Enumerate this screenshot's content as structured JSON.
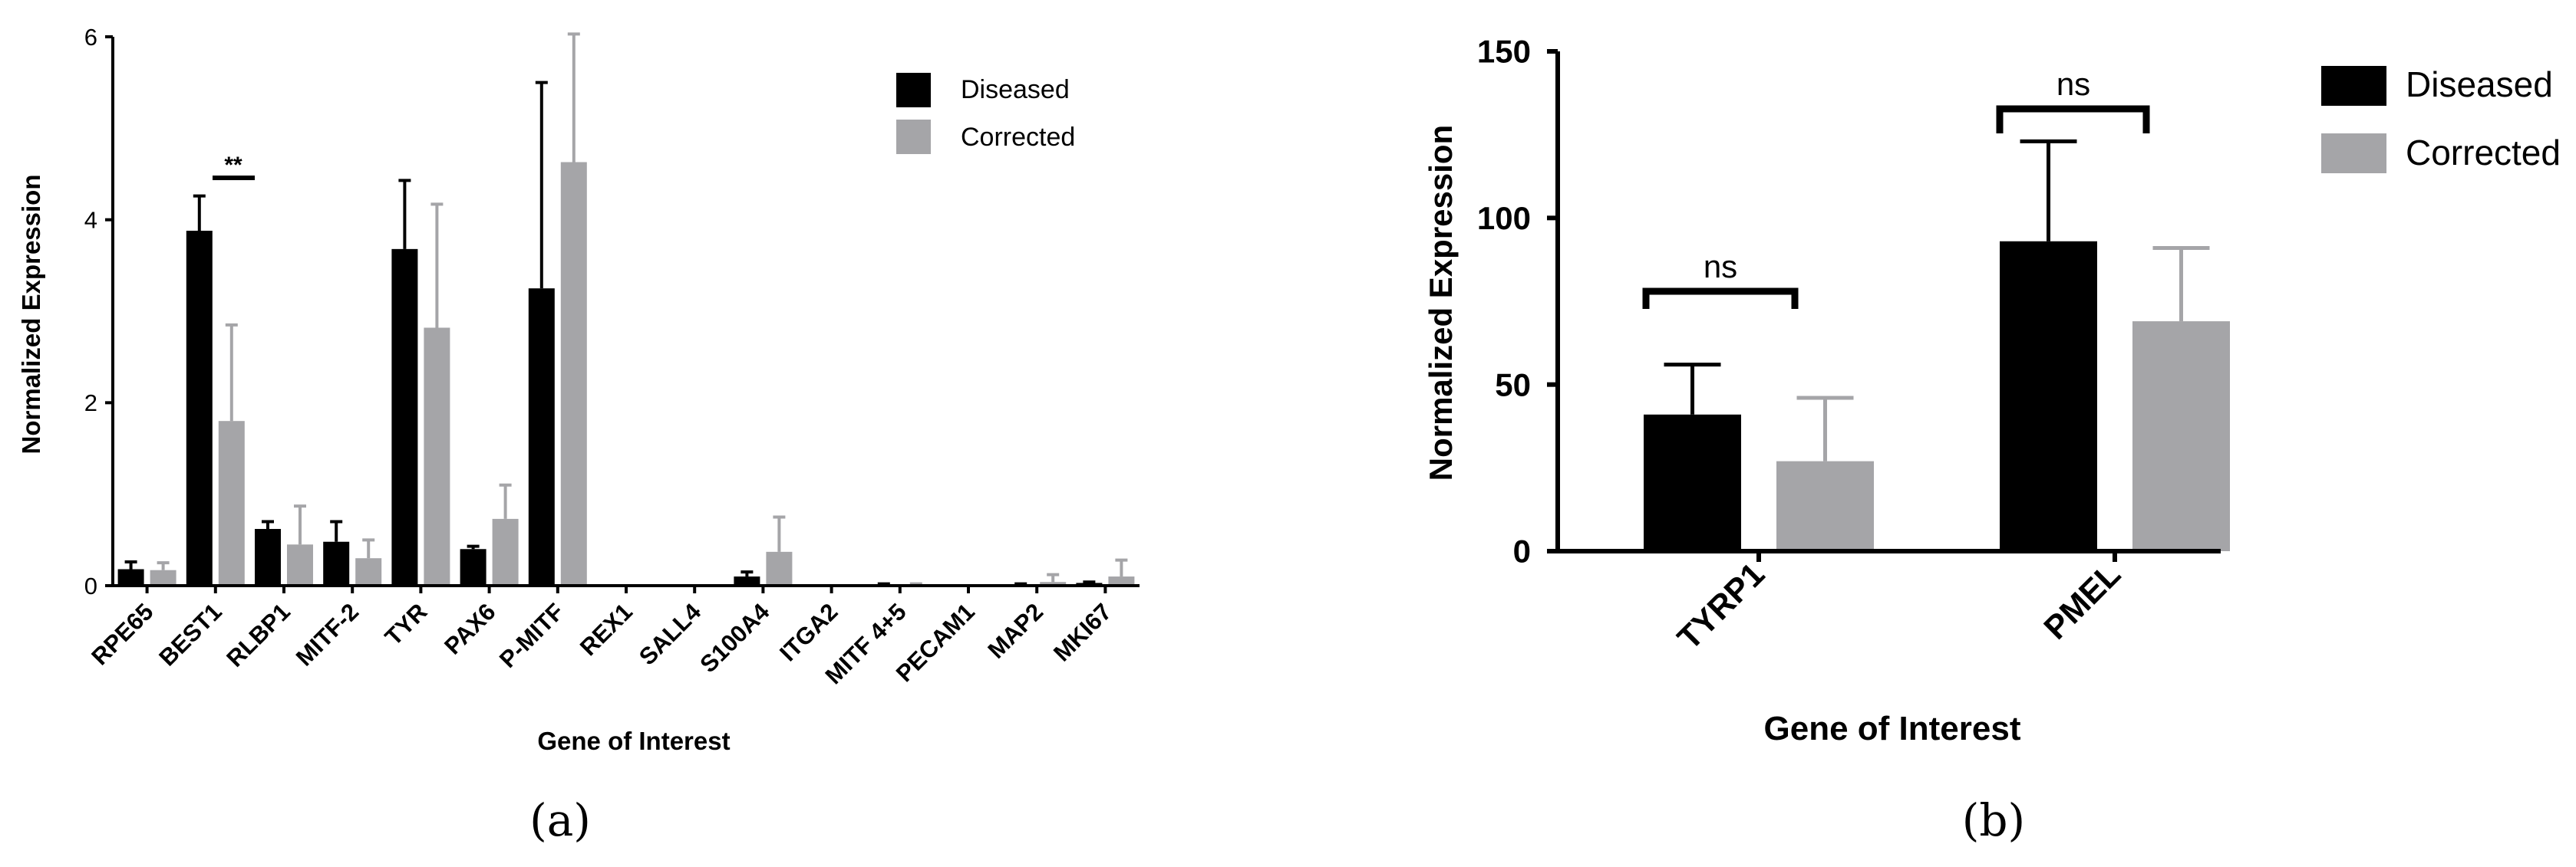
{
  "colors": {
    "diseased": "#000000",
    "corrected": "#a5a5a8",
    "axis": "#000000"
  },
  "chart_data": [
    {
      "type": "bar",
      "panel_label": "(a)",
      "xlabel": "Gene of Interest",
      "ylabel": "Normalized Expression",
      "ylim": [
        0,
        6
      ],
      "yticks": [
        "0",
        "2",
        "4",
        "6"
      ],
      "categories": [
        "RPE65",
        "BEST1",
        "RLBP1",
        "MITF-2",
        "TYR",
        "PAX6",
        "P-MITF",
        "REX1",
        "SALL4",
        "S100A4",
        "ITGA2",
        "MITF 4+5",
        "PECAM1",
        "MAP2",
        "MKI67"
      ],
      "series": [
        {
          "name": "Diseased",
          "values": [
            0.18,
            3.88,
            0.62,
            0.48,
            3.68,
            0.4,
            3.25,
            0.0,
            0.0,
            0.1,
            0.0,
            0.01,
            0.0,
            0.01,
            0.03
          ],
          "errors": [
            0.08,
            0.38,
            0.08,
            0.22,
            0.75,
            0.03,
            2.25,
            0.0,
            0.0,
            0.05,
            0.0,
            0.01,
            0.0,
            0.01,
            0.01
          ]
        },
        {
          "name": "Corrected",
          "values": [
            0.17,
            1.8,
            0.45,
            0.3,
            2.82,
            0.73,
            4.63,
            0.0,
            0.0,
            0.37,
            0.0,
            0.01,
            0.0,
            0.04,
            0.1
          ],
          "errors": [
            0.08,
            1.05,
            0.42,
            0.2,
            1.35,
            0.37,
            1.4,
            0.0,
            0.0,
            0.38,
            0.0,
            0.01,
            0.0,
            0.08,
            0.18
          ]
        }
      ],
      "legend": {
        "position": "top-right",
        "entries": [
          "Diseased",
          "Corrected"
        ]
      },
      "annotations": [
        {
          "text": "**",
          "category": "BEST1"
        }
      ]
    },
    {
      "type": "bar",
      "panel_label": "(b)",
      "xlabel": "Gene of Interest",
      "ylabel": "Normalized Expression",
      "ylim": [
        0,
        150
      ],
      "yticks": [
        "0",
        "50",
        "100",
        "150"
      ],
      "categories": [
        "TYRP1",
        "PMEL"
      ],
      "series": [
        {
          "name": "Diseased",
          "values": [
            41,
            93
          ],
          "errors": [
            15,
            30
          ]
        },
        {
          "name": "Corrected",
          "values": [
            27,
            69
          ],
          "errors": [
            19,
            22
          ]
        }
      ],
      "legend": {
        "position": "top-right",
        "entries": [
          "Diseased",
          "Corrected"
        ]
      },
      "annotations": [
        {
          "text": "ns",
          "category": "TYRP1"
        },
        {
          "text": "ns",
          "category": "PMEL"
        }
      ]
    }
  ]
}
